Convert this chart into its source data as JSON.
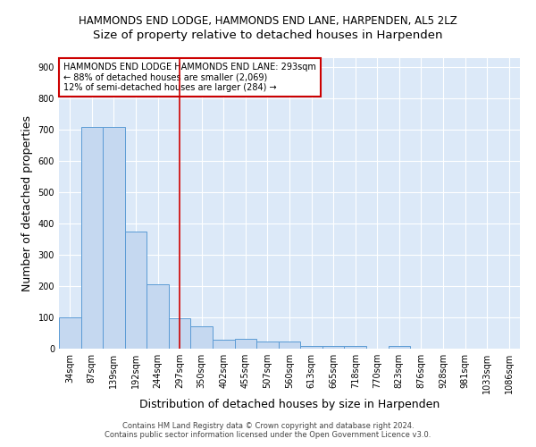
{
  "title": "HAMMONDS END LODGE, HAMMONDS END LANE, HARPENDEN, AL5 2LZ",
  "subtitle": "Size of property relative to detached houses in Harpenden",
  "xlabel": "Distribution of detached houses by size in Harpenden",
  "ylabel": "Number of detached properties",
  "categories": [
    "34sqm",
    "87sqm",
    "139sqm",
    "192sqm",
    "244sqm",
    "297sqm",
    "350sqm",
    "402sqm",
    "455sqm",
    "507sqm",
    "560sqm",
    "613sqm",
    "665sqm",
    "718sqm",
    "770sqm",
    "823sqm",
    "876sqm",
    "928sqm",
    "981sqm",
    "1033sqm",
    "1086sqm"
  ],
  "values": [
    101,
    710,
    710,
    375,
    207,
    96,
    72,
    30,
    32,
    22,
    23,
    9,
    10,
    8,
    0,
    9,
    0,
    0,
    0,
    0,
    0
  ],
  "bar_color": "#c5d8f0",
  "bar_edge_color": "#5b9bd5",
  "highlight_index": 5,
  "highlight_line_color": "#cc0000",
  "annotation_text": "HAMMONDS END LODGE HAMMONDS END LANE: 293sqm\n← 88% of detached houses are smaller (2,069)\n12% of semi-detached houses are larger (284) →",
  "annotation_box_color": "#ffffff",
  "annotation_box_edge_color": "#cc0000",
  "ylim": [
    0,
    930
  ],
  "yticks": [
    0,
    100,
    200,
    300,
    400,
    500,
    600,
    700,
    800,
    900
  ],
  "footer_line1": "Contains HM Land Registry data © Crown copyright and database right 2024.",
  "footer_line2": "Contains public sector information licensed under the Open Government Licence v3.0.",
  "fig_background_color": "#ffffff",
  "plot_background_color": "#dce9f8",
  "grid_color": "#ffffff",
  "title_fontsize": 8.5,
  "subtitle_fontsize": 9.5,
  "axis_label_fontsize": 9,
  "tick_fontsize": 7,
  "annotation_fontsize": 7,
  "footer_fontsize": 6
}
